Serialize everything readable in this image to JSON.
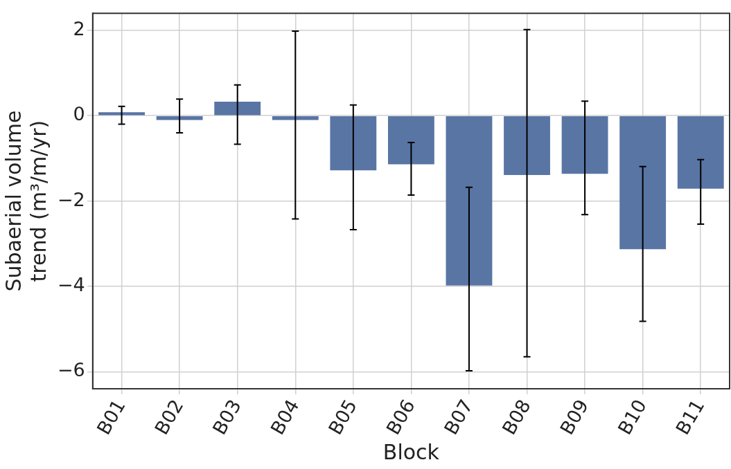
{
  "chart_data": {
    "type": "bar",
    "xlabel": "Block",
    "ylabel": "Subaerial volume trend (m³/m/yr)",
    "categories": [
      "B01",
      "B02",
      "B03",
      "B04",
      "B05",
      "B06",
      "B07",
      "B08",
      "B09",
      "B10",
      "B11"
    ],
    "values": [
      0.08,
      -0.1,
      0.33,
      -0.1,
      -1.28,
      -1.14,
      -3.98,
      -1.39,
      -1.36,
      -3.13,
      -1.71
    ],
    "errors": [
      [
        -0.2,
        0.22
      ],
      [
        -0.4,
        0.39
      ],
      [
        -0.67,
        0.72
      ],
      [
        -2.42,
        1.98
      ],
      [
        -2.67,
        0.25
      ],
      [
        -1.86,
        -0.63
      ],
      [
        -5.98,
        -1.68
      ],
      [
        -5.65,
        2.02
      ],
      [
        -2.32,
        0.34
      ],
      [
        -4.82,
        -1.19
      ],
      [
        -2.54,
        -1.03
      ]
    ],
    "color": "#5875a4",
    "ylim": [
      -6.4,
      2.4
    ],
    "yticks": [
      2,
      0,
      -2,
      -4,
      -6
    ],
    "grid": true
  }
}
